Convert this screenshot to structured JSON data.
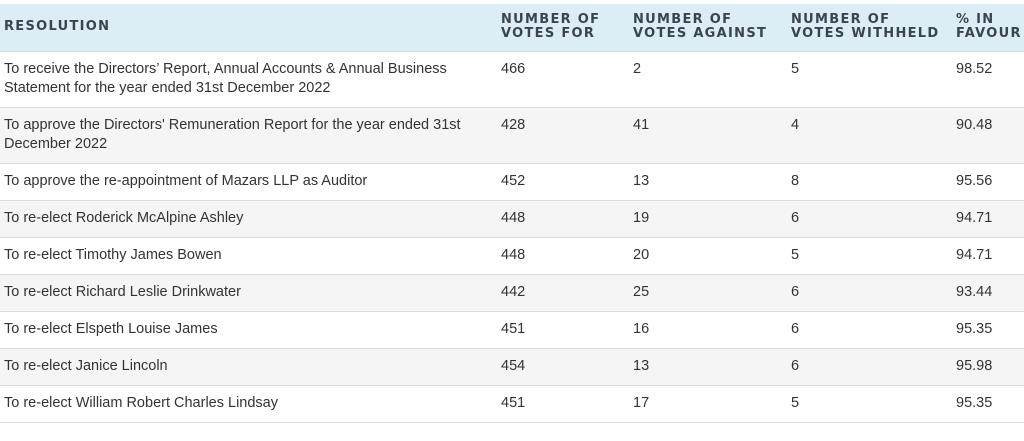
{
  "table": {
    "headers": {
      "resolution": [
        "RESOLUTION"
      ],
      "votes_for": [
        "NUMBER OF",
        "VOTES FOR"
      ],
      "votes_against": [
        "NUMBER OF",
        "VOTES AGAINST"
      ],
      "votes_withheld": [
        "NUMBER OF",
        "VOTES WITHHELD"
      ],
      "pct_favour": [
        "% IN",
        "FAVOUR"
      ]
    },
    "rows": [
      {
        "resolution": "To receive the Directors’ Report, Annual Accounts & Annual Business Statement for the year ended 31st December 2022",
        "votes_for": "466",
        "votes_against": "2",
        "votes_withheld": "5",
        "pct_favour": "98.52"
      },
      {
        "resolution": "To approve the Directors' Remuneration Report for the year ended 31st December 2022",
        "votes_for": "428",
        "votes_against": "41",
        "votes_withheld": "4",
        "pct_favour": "90.48"
      },
      {
        "resolution": "To approve the re-appointment of Mazars LLP as Auditor",
        "votes_for": "452",
        "votes_against": "13",
        "votes_withheld": "8",
        "pct_favour": "95.56"
      },
      {
        "resolution": "To re-elect Roderick McAlpine Ashley",
        "votes_for": "448",
        "votes_against": "19",
        "votes_withheld": "6",
        "pct_favour": "94.71"
      },
      {
        "resolution": "To re-elect Timothy James Bowen",
        "votes_for": "448",
        "votes_against": "20",
        "votes_withheld": "5",
        "pct_favour": "94.71"
      },
      {
        "resolution": "To re-elect Richard Leslie Drinkwater",
        "votes_for": "442",
        "votes_against": "25",
        "votes_withheld": "6",
        "pct_favour": "93.44"
      },
      {
        "resolution": "To re-elect Elspeth Louise James",
        "votes_for": "451",
        "votes_against": "16",
        "votes_withheld": "6",
        "pct_favour": "95.35"
      },
      {
        "resolution": "To re-elect Janice Lincoln",
        "votes_for": "454",
        "votes_against": "13",
        "votes_withheld": "6",
        "pct_favour": "95.98"
      },
      {
        "resolution": "To re-elect William Robert Charles Lindsay",
        "votes_for": "451",
        "votes_against": "17",
        "votes_withheld": "5",
        "pct_favour": "95.35"
      }
    ]
  }
}
